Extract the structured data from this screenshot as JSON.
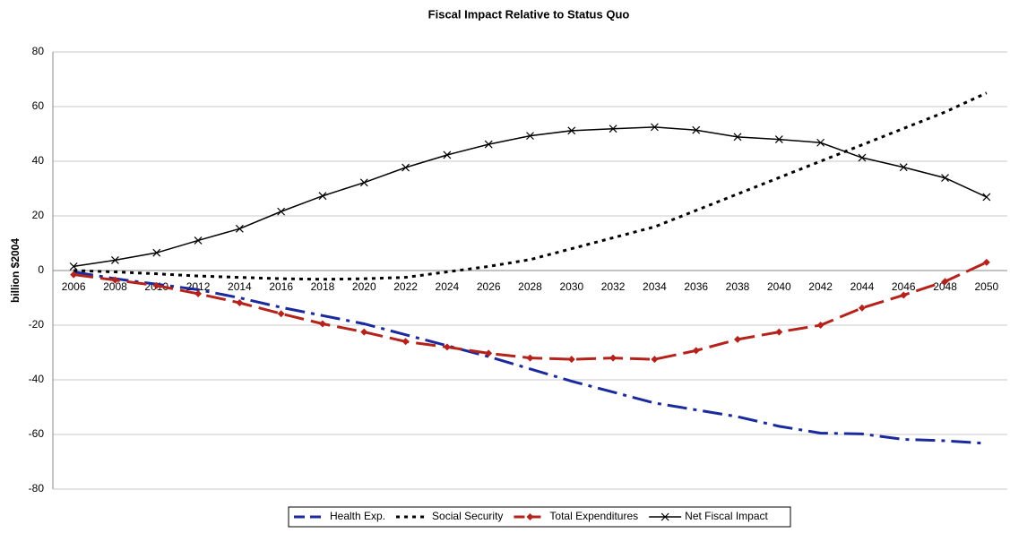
{
  "chart_data": {
    "type": "line",
    "title": "Fiscal Impact Relative to Status Quo",
    "y_label": "billion $2004",
    "categories": [
      "2006",
      "2008",
      "2010",
      "2012",
      "2014",
      "2016",
      "2018",
      "2020",
      "2022",
      "2024",
      "2026",
      "2028",
      "2030",
      "2032",
      "2034",
      "2036",
      "2038",
      "2040",
      "2042",
      "2044",
      "2046",
      "2048",
      "2050"
    ],
    "ylim": [
      -80,
      80
    ],
    "yticks": [
      -80,
      -60,
      -40,
      -20,
      0,
      20,
      40,
      60,
      80
    ],
    "grid": true,
    "legend": "bottom",
    "series": [
      {
        "name": "Health Exp.",
        "color": "#1a2a9c",
        "values": [
          -0.5,
          -3,
          -5,
          -7,
          -10,
          -13.5,
          -16.5,
          -19.5,
          -23.5,
          -27.5,
          -31.5,
          -36,
          -40.5,
          -44.5,
          -48.5,
          -51,
          -53.5,
          -57,
          -59.5,
          -59.8,
          -61.8,
          -62.3,
          -63.3
        ]
      },
      {
        "name": "Social Security",
        "color": "#000000",
        "values": [
          0,
          -0.5,
          -1.2,
          -2,
          -2.5,
          -3,
          -3.2,
          -3,
          -2.5,
          -0.5,
          1.5,
          4,
          8,
          12,
          16,
          22,
          28,
          34,
          40,
          46,
          52,
          58,
          65
        ]
      },
      {
        "name": "Total Expenditures",
        "color": "#b5221b",
        "values": [
          -1.5,
          -3.5,
          -5.5,
          -8.5,
          -11.8,
          -15.8,
          -19.5,
          -22.5,
          -26,
          -28,
          -30.3,
          -32,
          -32.5,
          -32,
          -32.5,
          -29.3,
          -25.2,
          -22.5,
          -20,
          -13.7,
          -9,
          -4,
          3
        ]
      },
      {
        "name": "Net Fiscal Impact",
        "color": "#000000",
        "values": [
          1.5,
          3.8,
          6.5,
          11,
          15.3,
          21.6,
          27.3,
          32.2,
          37.7,
          42.3,
          46.2,
          49.3,
          51.2,
          51.9,
          52.5,
          51.4,
          48.9,
          48,
          46.8,
          41.3,
          37.8,
          33.9,
          26.9
        ]
      }
    ]
  }
}
